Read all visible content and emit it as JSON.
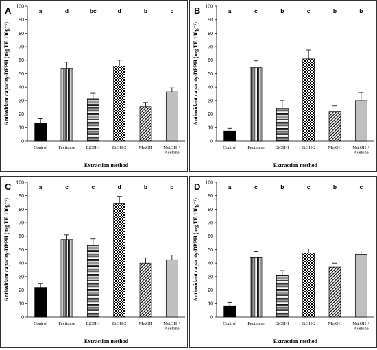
{
  "chart_data": [
    {
      "panel": "A",
      "type": "bar",
      "categories": [
        "Control",
        "Pectinase",
        "EtOH-1",
        "EtOH-2",
        "MetOH",
        "MetOH + Acetone"
      ],
      "values": [
        13.5,
        53.5,
        31.5,
        55.5,
        25.5,
        36.5
      ],
      "errors": [
        3,
        5,
        4,
        4.5,
        3,
        3
      ],
      "letters": [
        "a",
        "d",
        "bc",
        "d",
        "b",
        "c"
      ],
      "ylim": [
        0,
        100
      ],
      "yticks": [
        0,
        10,
        20,
        30,
        40,
        50,
        60,
        70,
        80,
        90,
        100
      ],
      "xlabel": "Extraction method",
      "ylabel": "Antioxidant capacity-DPPH (mg TE 100g⁻¹)"
    },
    {
      "panel": "B",
      "type": "bar",
      "categories": [
        "Control",
        "Pectinase",
        "EtOH-1",
        "EtOH-2",
        "MetOH",
        "MetOH + Acetone"
      ],
      "values": [
        7.5,
        54.5,
        24.5,
        61,
        22,
        30
      ],
      "errors": [
        2,
        5,
        5.5,
        6.5,
        4,
        6
      ],
      "letters": [
        "a",
        "c",
        "b",
        "c",
        "b",
        "b"
      ],
      "ylim": [
        0,
        100
      ],
      "yticks": [
        0,
        10,
        20,
        30,
        40,
        50,
        60,
        70,
        80,
        90,
        100
      ],
      "xlabel": "Extraction method",
      "ylabel": "Antioxidant capacity-DPPH (mg TE 100g⁻¹)"
    },
    {
      "panel": "C",
      "type": "bar",
      "categories": [
        "Control",
        "Pectinase",
        "EtOH-1",
        "EtOH-2",
        "MetOH",
        "MetOH + Acetone"
      ],
      "values": [
        22,
        57.5,
        53.5,
        84,
        40,
        42.5
      ],
      "errors": [
        3,
        3.5,
        4.5,
        5.5,
        4,
        3.5
      ],
      "letters": [
        "a",
        "c",
        "c",
        "d",
        "b",
        "b"
      ],
      "ylim": [
        0,
        100
      ],
      "yticks": [
        0,
        10,
        20,
        30,
        40,
        50,
        60,
        70,
        80,
        90,
        100
      ],
      "xlabel": "Extraction method",
      "ylabel": "Antioxidant capacity-DPPH (mg TE 100g⁻¹)"
    },
    {
      "panel": "D",
      "type": "bar",
      "categories": [
        "Control",
        "Pectinase",
        "EtOH-1",
        "EtOH-2",
        "MetOH",
        "MetOH + Acetone"
      ],
      "values": [
        8,
        44.5,
        31,
        47.5,
        37,
        46.5
      ],
      "errors": [
        3,
        4,
        3.5,
        3,
        3,
        2.5
      ],
      "letters": [
        "a",
        "c",
        "b",
        "c",
        "b",
        "c"
      ],
      "ylim": [
        0,
        100
      ],
      "yticks": [
        0,
        10,
        20,
        30,
        40,
        50,
        60,
        70,
        80,
        90,
        100
      ],
      "xlabel": "Extraction method",
      "ylabel": "Antioxidant capacity-DPPH (mg TE 100g⁻¹)"
    }
  ],
  "bar_patterns": [
    "solid-black",
    "vertical-lines",
    "horizontal-lines",
    "checkerboard",
    "diagonal-lines",
    "solid-gray"
  ],
  "colors": {
    "frame": "#000000",
    "gray_bar": "#c0c0c0",
    "black_bar": "#000000",
    "background": "#ffffff"
  }
}
